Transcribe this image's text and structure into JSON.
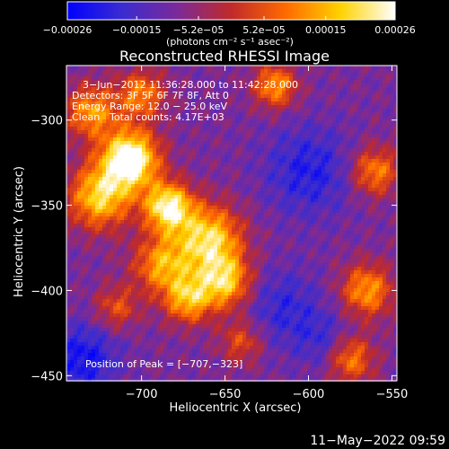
{
  "chart_data": {
    "type": "heatmap",
    "title": "Reconstructed RHESSI Image",
    "xlabel": "Heliocentric X (arcsec)",
    "ylabel": "Heliocentric Y (arcsec)",
    "xlim": [
      -745,
      -547
    ],
    "ylim": [
      -453,
      -268
    ],
    "x_ticks": [
      -700,
      -650,
      -600,
      -550
    ],
    "x_tick_labels": [
      "−700",
      "−650",
      "−600",
      "−550"
    ],
    "y_ticks": [
      -450,
      -400,
      -350,
      -300
    ],
    "y_tick_labels": [
      "−450",
      "−400",
      "−350",
      "−300"
    ],
    "colorbar": {
      "range": [
        -0.00026,
        0.00026
      ],
      "tick_values": [
        -0.00026,
        -0.00015,
        -5.2e-05,
        5.2e-05,
        0.00015,
        0.00026
      ],
      "tick_labels": [
        "−0.00026",
        "−0.00015",
        "−5.2e−05",
        "5.2e−05",
        "0.00015",
        "0.00026"
      ],
      "units": "(photons cm⁻² s⁻¹ asec⁻²)",
      "stops": [
        "#0000ff",
        "#3a2cd0",
        "#7a2a9a",
        "#c02a2a",
        "#ff6a00",
        "#ffd200",
        "#ffffff"
      ]
    },
    "annotations": {
      "time_range": "3−Jun−2012 11:36:28.000 to 11:42:28.000",
      "detectors": "Detectors: 3F 5F 6F 7F 8F, Att 0",
      "energy_range": "Energy Range: 12.0 − 25.0 keV",
      "method": "Clean",
      "total_counts": "Total counts: 4.17E+03",
      "peak_position": "Position of Peak = [−707,−323]"
    },
    "peak": [
      -707,
      -323
    ],
    "sources": [
      {
        "x": -707,
        "y": -323,
        "intensity": 1.0,
        "sigma": 12
      },
      {
        "x": -684,
        "y": -351,
        "intensity": 0.85,
        "sigma": 10
      },
      {
        "x": -725,
        "y": -345,
        "intensity": 0.7,
        "sigma": 13
      },
      {
        "x": -660,
        "y": -370,
        "intensity": 0.75,
        "sigma": 14
      },
      {
        "x": -650,
        "y": -395,
        "intensity": 0.65,
        "sigma": 11
      },
      {
        "x": -672,
        "y": -405,
        "intensity": 0.6,
        "sigma": 10
      },
      {
        "x": -688,
        "y": -385,
        "intensity": 0.55,
        "sigma": 12
      },
      {
        "x": -730,
        "y": -295,
        "intensity": 0.55,
        "sigma": 11
      },
      {
        "x": -700,
        "y": -285,
        "intensity": 0.5,
        "sigma": 10
      },
      {
        "x": -620,
        "y": -280,
        "intensity": 0.55,
        "sigma": 9
      },
      {
        "x": -560,
        "y": -330,
        "intensity": 0.5,
        "sigma": 10
      },
      {
        "x": -565,
        "y": -400,
        "intensity": 0.55,
        "sigma": 11
      },
      {
        "x": -575,
        "y": -440,
        "intensity": 0.5,
        "sigma": 10
      },
      {
        "x": -640,
        "y": -430,
        "intensity": 0.35,
        "sigma": 9
      },
      {
        "x": -715,
        "y": -410,
        "intensity": 0.35,
        "sigma": 9
      }
    ],
    "sinks": [
      {
        "x": -735,
        "y": -440,
        "intensity": 0.6,
        "sigma": 14
      },
      {
        "x": -600,
        "y": -330,
        "intensity": 0.5,
        "sigma": 18
      },
      {
        "x": -615,
        "y": -410,
        "intensity": 0.4,
        "sigma": 16
      },
      {
        "x": -590,
        "y": -430,
        "intensity": 0.35,
        "sigma": 12
      }
    ]
  },
  "footer": {
    "date": "11−May−2022 09:59"
  }
}
